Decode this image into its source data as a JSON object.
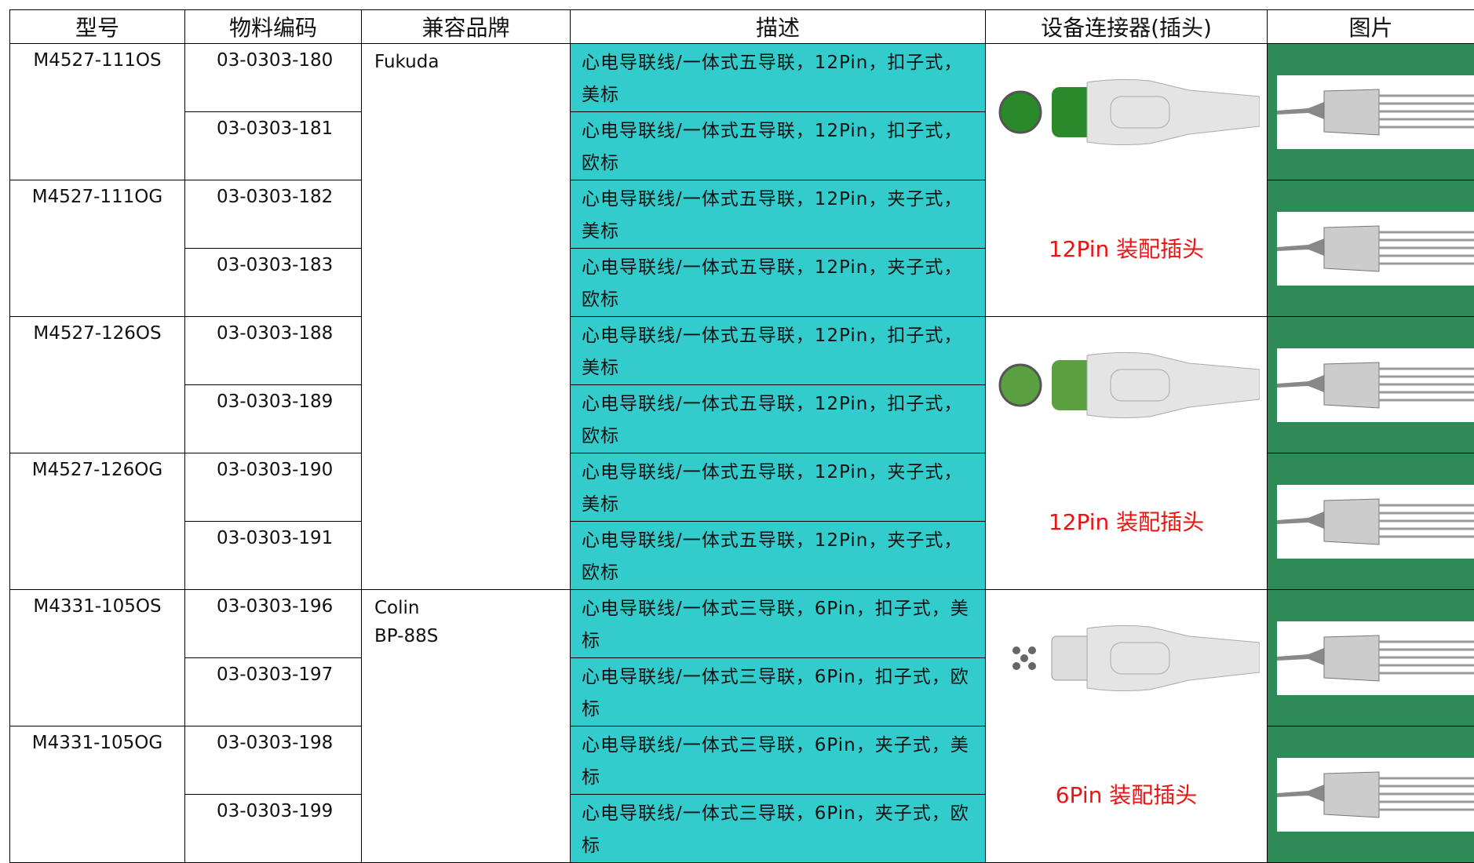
{
  "header": [
    "型号",
    "物料编码",
    "兼容品牌",
    "描述",
    "设备连接器(插头)",
    "图片"
  ],
  "groups": [
    {
      "brand": [
        "Fukuda"
      ],
      "connectors": [
        {
          "label": "12Pin  装配插头",
          "models": [
            {
              "model": "M4527-111OS",
              "rows": [
                {
                  "code": "03-0303-180",
                  "description": "心电导联线/一体式五导联，12Pin，扣子式，美标"
                },
                {
                  "code": "03-0303-181",
                  "description": "心电导联线/一体式五导联，12Pin，扣子式，欧标"
                }
              ]
            },
            {
              "model": "M4527-111OG",
              "rows": [
                {
                  "code": "03-0303-182",
                  "description": "心电导联线/一体式五导联，12Pin，夹子式，美标"
                },
                {
                  "code": "03-0303-183",
                  "description": "心电导联线/一体式五导联，12Pin，夹子式，欧标"
                }
              ]
            }
          ]
        },
        {
          "label": "12Pin  装配插头",
          "models": [
            {
              "model": "M4527-126OS",
              "rows": [
                {
                  "code": "03-0303-188",
                  "description": "心电导联线/一体式五导联，12Pin，扣子式，美标"
                },
                {
                  "code": "03-0303-189",
                  "description": "心电导联线/一体式五导联，12Pin，扣子式，欧标"
                }
              ]
            },
            {
              "model": "M4527-126OG",
              "rows": [
                {
                  "code": "03-0303-190",
                  "description": "心电导联线/一体式五导联，12Pin，夹子式，美标"
                },
                {
                  "code": "03-0303-191",
                  "description": "心电导联线/一体式五导联，12Pin，夹子式，欧标"
                }
              ]
            }
          ]
        }
      ]
    },
    {
      "brand": [
        "Colin",
        "BP-88S"
      ],
      "connectors": [
        {
          "label": "6Pin  装配插头",
          "models": [
            {
              "model": "M4331-105OS",
              "rows": [
                {
                  "code": "03-0303-196",
                  "description": "心电导联线/一体式三导联，6Pin，扣子式，美标"
                },
                {
                  "code": "03-0303-197",
                  "description": "心电导联线/一体式三导联，6Pin，扣子式，欧标"
                }
              ]
            },
            {
              "model": "M4331-105OG",
              "rows": [
                {
                  "code": "03-0303-198",
                  "description": "心电导联线/一体式三导联，6Pin，夹子式，美标"
                },
                {
                  "code": "03-0303-199",
                  "description": "心电导联线/一体式三导联，6Pin，夹子式，欧标"
                }
              ]
            }
          ]
        }
      ]
    }
  ]
}
